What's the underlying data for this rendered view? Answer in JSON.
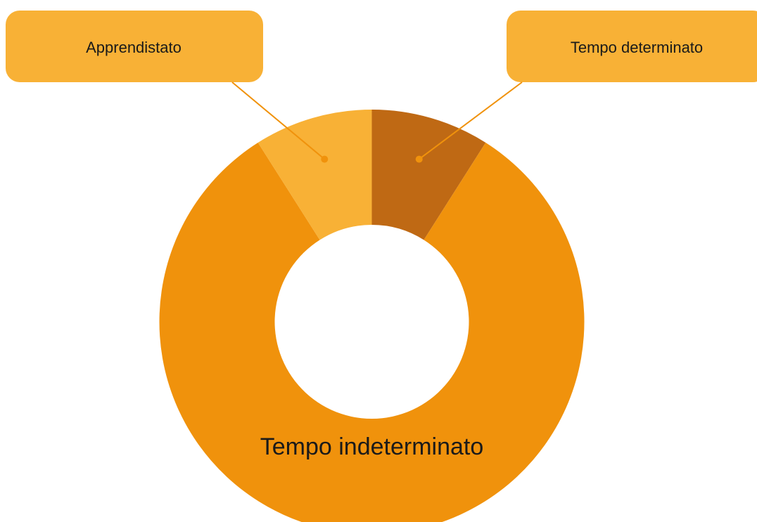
{
  "chart_data": {
    "type": "donut",
    "categories": [
      "Tempo determinato",
      "Tempo indeterminato",
      "Apprendistato"
    ],
    "values": [
      9,
      82,
      9
    ],
    "colors": [
      "#bf6914",
      "#f0920c",
      "#f8b136"
    ]
  }
}
